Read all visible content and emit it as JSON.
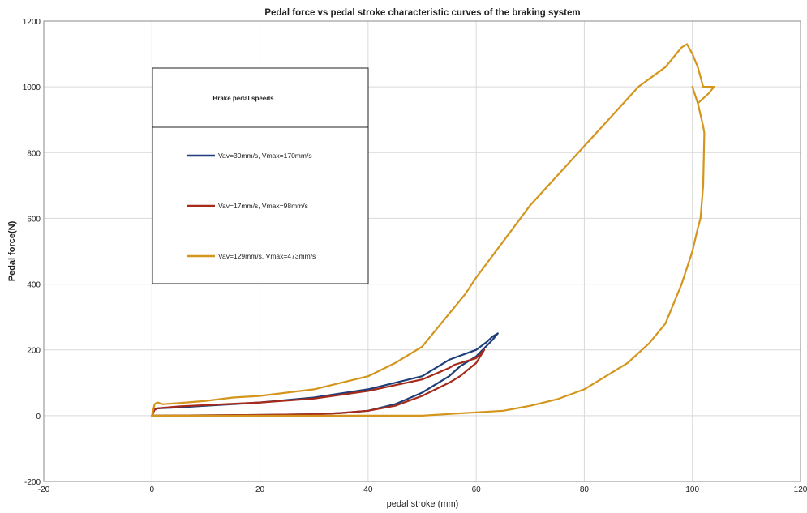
{
  "chart_data": {
    "type": "line",
    "title": "Pedal force vs pedal stroke characteristic curves of the braking system",
    "xlabel": "pedal stroke (mm)",
    "ylabel": "Pedal force(N)",
    "xlim": [
      -20,
      120
    ],
    "ylim": [
      -200,
      1200
    ],
    "xticks": [
      -20,
      0,
      20,
      40,
      60,
      80,
      100,
      120
    ],
    "yticks": [
      -200,
      0,
      200,
      400,
      600,
      800,
      1000,
      1200
    ],
    "grid": true,
    "legend": {
      "title": "Brake pedal speeds",
      "placement": "upper-left"
    },
    "series": [
      {
        "name": "Vav=30mm/s, Vmax=170mm/s",
        "color": "#1f3f7a",
        "x": [
          0,
          0.5,
          1,
          5,
          10,
          20,
          30,
          40,
          50,
          55,
          60,
          62,
          63,
          64,
          63,
          60,
          57,
          55,
          50,
          45,
          40,
          35,
          30,
          20,
          10,
          0
        ],
        "y": [
          0,
          20,
          22,
          25,
          30,
          40,
          55,
          80,
          120,
          170,
          200,
          225,
          240,
          250,
          230,
          180,
          150,
          120,
          70,
          35,
          15,
          8,
          4,
          2,
          1,
          0
        ]
      },
      {
        "name": "Vav=17mm/s, Vmax=98mm/s",
        "color": "#a52a1a",
        "x": [
          0,
          0.5,
          1,
          5,
          10,
          20,
          30,
          40,
          50,
          55,
          56,
          60,
          61.5,
          60,
          57,
          55,
          50,
          45,
          40,
          35,
          30,
          20,
          10,
          0
        ],
        "y": [
          0,
          18,
          22,
          28,
          32,
          40,
          52,
          75,
          110,
          145,
          155,
          175,
          200,
          160,
          120,
          100,
          60,
          30,
          15,
          8,
          4,
          2,
          1,
          0
        ]
      },
      {
        "name": "Vav=129mm/s, Vmax=473mm/s",
        "color": "#d4951c",
        "x": [
          0,
          0.5,
          1,
          2,
          5,
          10,
          15,
          20,
          30,
          40,
          45,
          50,
          52,
          55,
          58,
          60,
          65,
          70,
          75,
          80,
          85,
          90,
          95,
          98,
          99,
          100,
          101,
          102,
          103,
          104,
          103,
          101,
          100,
          101,
          102,
          102.2,
          102,
          101.5,
          101,
          100,
          98,
          95,
          92,
          88,
          85,
          80,
          75,
          70,
          65,
          60,
          55,
          50,
          45,
          40,
          30,
          20,
          10,
          0
        ],
        "y": [
          0,
          35,
          40,
          35,
          38,
          45,
          55,
          60,
          80,
          120,
          160,
          210,
          250,
          310,
          370,
          420,
          530,
          640,
          730,
          820,
          910,
          1000,
          1060,
          1120,
          1130,
          1100,
          1060,
          1000,
          1000,
          1000,
          980,
          950,
          1000,
          950,
          880,
          860,
          700,
          600,
          570,
          500,
          400,
          280,
          220,
          160,
          130,
          80,
          50,
          30,
          15,
          10,
          5,
          0,
          0,
          0,
          0,
          0,
          0,
          0
        ]
      }
    ]
  }
}
